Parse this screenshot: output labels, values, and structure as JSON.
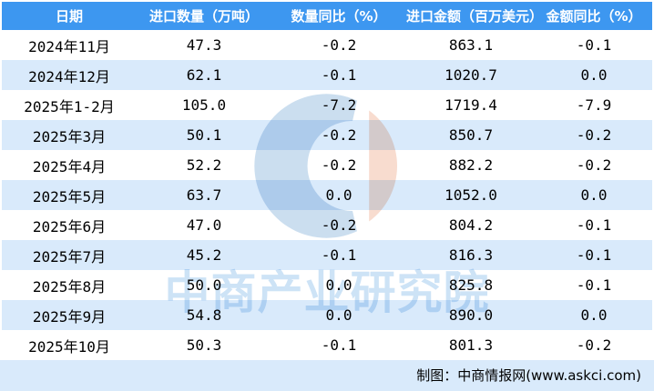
{
  "chart_data": {
    "type": "table",
    "columns": [
      "日期",
      "进口数量（万吨）",
      "数量同比（%）",
      "进口金额（百万美元）",
      "金额同比（%）"
    ],
    "rows": [
      [
        "2024年11月",
        "47.3",
        "-0.2",
        "863.1",
        "-0.1"
      ],
      [
        "2024年12月",
        "62.1",
        "-0.1",
        "1020.7",
        "0.0"
      ],
      [
        "2025年1-2月",
        "105.0",
        "-7.2",
        "1719.4",
        "-7.9"
      ],
      [
        "2025年3月",
        "50.1",
        "-0.2",
        "850.7",
        "-0.2"
      ],
      [
        "2025年4月",
        "52.2",
        "-0.2",
        "882.2",
        "-0.2"
      ],
      [
        "2025年5月",
        "63.7",
        "0.0",
        "1052.0",
        "0.0"
      ],
      [
        "2025年6月",
        "47.0",
        "-0.2",
        "804.2",
        "-0.1"
      ],
      [
        "2025年7月",
        "45.2",
        "-0.1",
        "816.3",
        "-0.1"
      ],
      [
        "2025年8月",
        "50.0",
        "0.0",
        "825.8",
        "-0.1"
      ],
      [
        "2025年9月",
        "54.8",
        "0.0",
        "890.0",
        "0.0"
      ],
      [
        "2025年10月",
        "50.3",
        "-0.1",
        "801.3",
        "-0.2"
      ]
    ],
    "title": "",
    "grid": false,
    "layout": "striped-table"
  },
  "watermark": {
    "text": "中商产业研究院",
    "logo": "ci-pie-logo"
  },
  "footer": {
    "credit": "制图：中商情报网(www.askci.com)"
  },
  "colors": {
    "header_bg": "#3D97F0",
    "header_text": "#FFFFFF",
    "stripe_bg": "#D9EAFB",
    "row_bg": "#FFFFFF",
    "cell_text": "#000000",
    "watermark_text": "#CDE3F6",
    "watermark_blue": "#CBDEEF",
    "watermark_red": "#F8DCCF"
  }
}
